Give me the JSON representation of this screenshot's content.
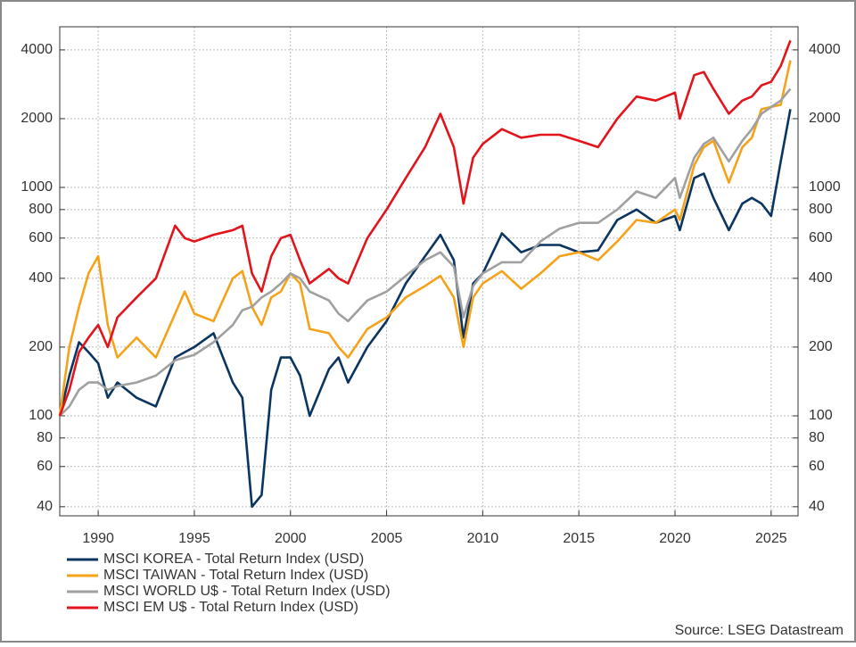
{
  "chart_data": {
    "type": "line",
    "log_y": true,
    "grid": true,
    "legend_position": "bottom-left",
    "source": "Source: LSEG Datastream",
    "x": [
      1988,
      1988.5,
      1989,
      1989.5,
      1990,
      1990.5,
      1991,
      1992,
      1993,
      1994,
      1994.5,
      1995,
      1996,
      1997,
      1997.5,
      1998,
      1998.5,
      1999,
      1999.5,
      2000,
      2000.5,
      2001,
      2002,
      2002.5,
      2003,
      2004,
      2005,
      2006,
      2007,
      2007.8,
      2008.5,
      2009,
      2009.5,
      2010,
      2011,
      2012,
      2013,
      2014,
      2015,
      2016,
      2017,
      2018,
      2019,
      2020,
      2020.25,
      2021,
      2021.5,
      2022,
      2022.8,
      2023.5,
      2024,
      2024.5,
      2025,
      2025.5,
      2026
    ],
    "xlim": [
      1988,
      2026.4
    ],
    "xticks": [
      1990,
      1995,
      2000,
      2005,
      2010,
      2015,
      2020,
      2025
    ],
    "ylim": [
      36.5,
      5050
    ],
    "yticks": [
      40,
      60,
      80,
      100,
      200,
      400,
      600,
      800,
      1000,
      2000,
      4000
    ],
    "series": [
      {
        "name": "MSCI KOREA - Total Return Index (USD)",
        "color": "#0a3560",
        "values": [
          100,
          150,
          210,
          190,
          170,
          120,
          140,
          120,
          110,
          180,
          190,
          200,
          230,
          140,
          120,
          40,
          45,
          130,
          180,
          180,
          150,
          100,
          160,
          180,
          140,
          200,
          260,
          380,
          500,
          620,
          480,
          220,
          380,
          420,
          630,
          520,
          560,
          560,
          520,
          530,
          720,
          800,
          700,
          750,
          650,
          1100,
          1150,
          900,
          650,
          850,
          900,
          850,
          750,
          1300,
          2200
        ]
      },
      {
        "name": "MSCI TAIWAN - Total Return Index (USD)",
        "color": "#f5a21b",
        "values": [
          100,
          200,
          300,
          420,
          500,
          250,
          180,
          220,
          180,
          280,
          350,
          280,
          260,
          400,
          430,
          300,
          250,
          330,
          350,
          420,
          380,
          240,
          230,
          200,
          180,
          240,
          270,
          330,
          370,
          410,
          330,
          200,
          330,
          380,
          430,
          360,
          420,
          500,
          520,
          480,
          580,
          720,
          700,
          800,
          720,
          1250,
          1500,
          1600,
          1050,
          1500,
          1650,
          2200,
          2250,
          2300,
          3600
        ]
      },
      {
        "name": "MSCI WORLD U$ - Total Return Index (USD)",
        "color": "#a0a0a0",
        "values": [
          100,
          110,
          130,
          140,
          140,
          130,
          135,
          140,
          150,
          175,
          180,
          185,
          210,
          250,
          290,
          300,
          330,
          350,
          380,
          420,
          400,
          350,
          320,
          280,
          260,
          320,
          350,
          410,
          480,
          520,
          450,
          270,
          370,
          420,
          470,
          470,
          580,
          660,
          700,
          700,
          800,
          960,
          900,
          1100,
          900,
          1350,
          1550,
          1650,
          1300,
          1600,
          1800,
          2100,
          2250,
          2400,
          2700
        ]
      },
      {
        "name": "MSCI EM U$ - Total Return Index (USD)",
        "color": "#e2141c",
        "values": [
          100,
          130,
          190,
          220,
          250,
          200,
          270,
          330,
          400,
          680,
          600,
          580,
          620,
          650,
          680,
          420,
          350,
          500,
          600,
          620,
          480,
          380,
          440,
          400,
          380,
          600,
          800,
          1100,
          1500,
          2100,
          1500,
          850,
          1350,
          1550,
          1800,
          1650,
          1700,
          1700,
          1600,
          1500,
          2000,
          2500,
          2400,
          2600,
          2000,
          3100,
          3200,
          2700,
          2100,
          2400,
          2500,
          2800,
          2900,
          3400,
          4400
        ]
      }
    ]
  }
}
